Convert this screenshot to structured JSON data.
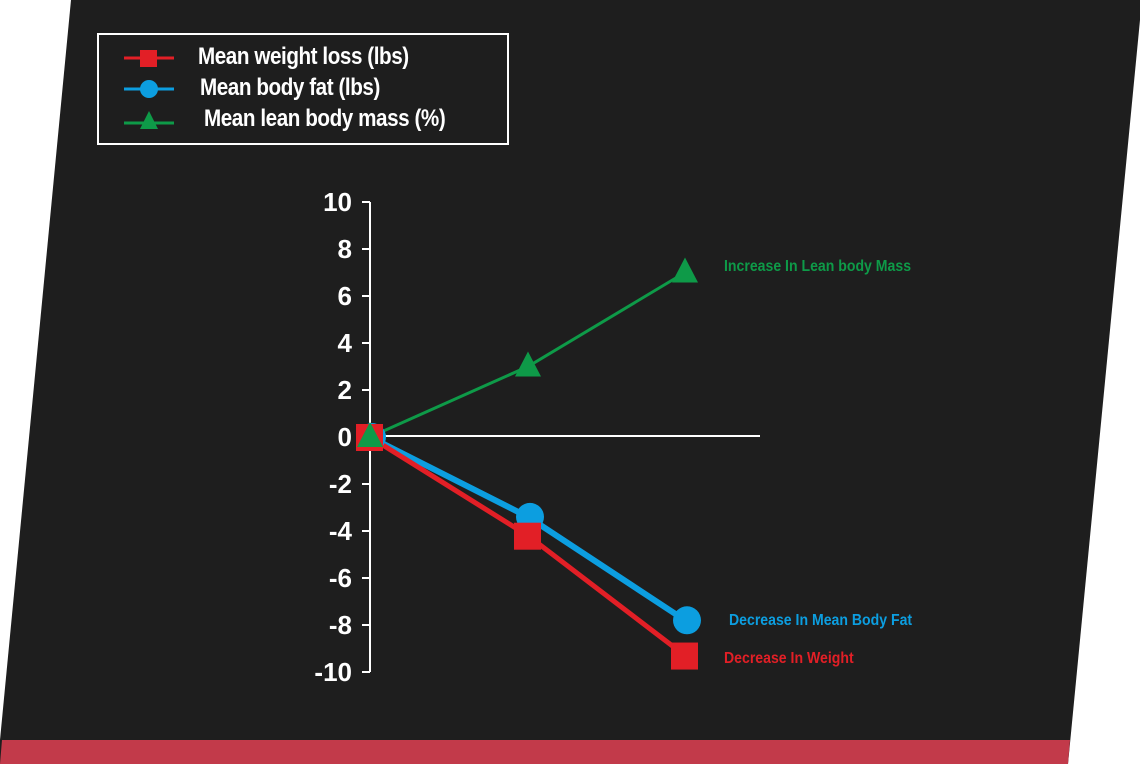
{
  "colors": {
    "background": "#1e1e1e",
    "accent_bar": "#c23a4a",
    "weight": "#e21f26",
    "body_fat": "#0c9ee0",
    "lean_mass": "#0e9a48",
    "axis": "#ffffff"
  },
  "legend": {
    "items": [
      {
        "label": "Mean weight loss (lbs)",
        "marker": "square-marker-icon",
        "color": "#e21f26"
      },
      {
        "label": "Mean body fat (lbs)",
        "marker": "circle-marker-icon",
        "color": "#0c9ee0"
      },
      {
        "label": "Mean lean body mass (%)",
        "marker": "triangle-marker-icon",
        "color": "#0e9a48"
      }
    ]
  },
  "annotations": {
    "lean_mass": "Increase In Lean body Mass",
    "body_fat": "Decrease In Mean Body Fat",
    "weight": "Decrease In Weight"
  },
  "axis": {
    "y_ticks": [
      "10",
      "8",
      "6",
      "4",
      "2",
      "0",
      "-2",
      "-4",
      "-6",
      "-8",
      "-10"
    ]
  },
  "chart_data": {
    "type": "line",
    "title": "",
    "xlabel": "",
    "ylabel": "",
    "x": [
      0,
      1,
      2
    ],
    "categories": [
      "",
      "",
      ""
    ],
    "ylim": [
      -10,
      10
    ],
    "yticks": [
      10,
      8,
      6,
      4,
      2,
      0,
      -2,
      -4,
      -6,
      -8,
      -10
    ],
    "grid": false,
    "legend_position": "top-left",
    "series": [
      {
        "name": "Mean weight loss (lbs)",
        "marker": "square",
        "color": "#e21f26",
        "values": [
          0,
          -4.2,
          -9.3
        ]
      },
      {
        "name": "Mean body fat (lbs)",
        "marker": "circle",
        "color": "#0c9ee0",
        "values": [
          0,
          -3.4,
          -7.8
        ]
      },
      {
        "name": "Mean lean body mass (%)",
        "marker": "triangle",
        "color": "#0e9a48",
        "values": [
          0,
          3.0,
          7.0
        ]
      }
    ],
    "annotations": [
      {
        "text": "Increase In Lean body Mass",
        "series": "Mean lean body mass (%)"
      },
      {
        "text": "Decrease In Mean Body Fat",
        "series": "Mean body fat (lbs)"
      },
      {
        "text": "Decrease In Weight",
        "series": "Mean weight loss (lbs)"
      }
    ]
  }
}
